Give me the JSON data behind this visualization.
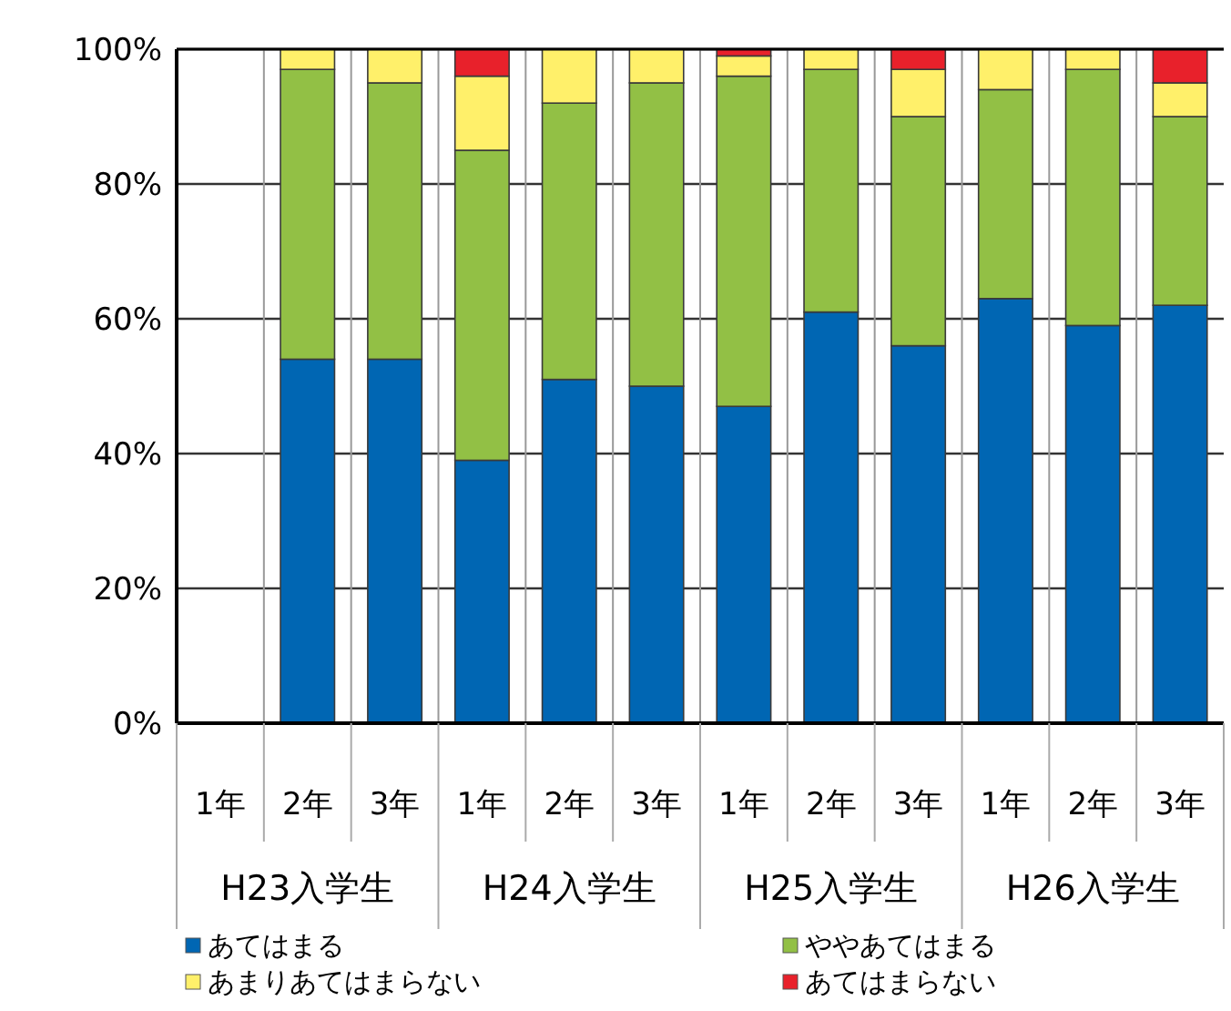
{
  "chart_data": {
    "type": "bar",
    "stacked": true,
    "categories": [
      "1年",
      "2年",
      "3年",
      "1年",
      "2年",
      "3年",
      "1年",
      "2年",
      "3年",
      "1年",
      "2年",
      "3年"
    ],
    "series": [
      {
        "name": "あてはまる",
        "color": "#0066b3",
        "values": [
          0,
          54,
          54,
          39,
          51,
          50,
          47,
          61,
          56,
          63,
          59,
          62
        ]
      },
      {
        "name": "ややあてはまる",
        "color": "#92c045",
        "values": [
          0,
          43,
          41,
          46,
          41,
          45,
          49,
          36,
          34,
          31,
          38,
          28
        ]
      },
      {
        "name": "あまりあてはまらない",
        "color": "#fff06a",
        "values": [
          0,
          3,
          5,
          11,
          8,
          5,
          3,
          3,
          7,
          6,
          3,
          5
        ]
      },
      {
        "name": "あてはまらない",
        "color": "#e8212b",
        "values": [
          0,
          0,
          0,
          4,
          0,
          0,
          1,
          0,
          3,
          0,
          0,
          5
        ]
      }
    ],
    "ylim": [
      0,
      100
    ],
    "yticks": [
      {
        "value": 0,
        "label": "0%"
      },
      {
        "value": 20,
        "label": "20%"
      },
      {
        "value": 40,
        "label": "40%"
      },
      {
        "value": 60,
        "label": "60%"
      },
      {
        "value": 80,
        "label": "80%"
      },
      {
        "value": 100,
        "label": "100%"
      }
    ],
    "annotations": [
      "H23入学生",
      "H24入学生",
      "H25入学生",
      "H26入学生"
    ],
    "grid": true,
    "legend": "bottom"
  }
}
